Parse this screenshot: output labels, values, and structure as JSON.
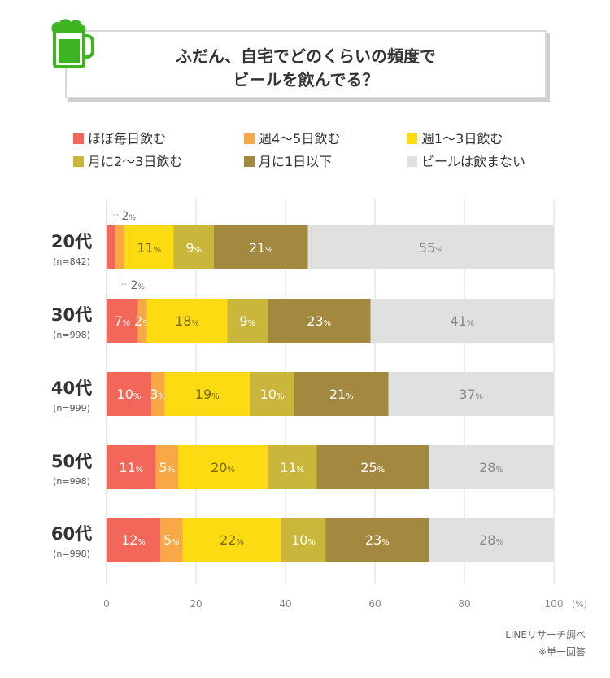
{
  "title": {
    "line1": "ふだん、自宅でどのくらいの頻度で",
    "line2": "ビールを飲んでる？"
  },
  "icon": "beer-mug-icon",
  "source": "LINEリサーチ調べ",
  "note": "※単一回答",
  "colors": [
    "#f2675a",
    "#f9a848",
    "#fcdb12",
    "#cab63a",
    "#a3893f",
    "#e0e0e0"
  ],
  "chart_data": {
    "type": "bar",
    "orientation": "horizontal",
    "stacked": true,
    "title": "ふだん、自宅でどのくらいの頻度でビールを飲んでる？",
    "categories": [
      "20代",
      "30代",
      "40代",
      "50代",
      "60代"
    ],
    "sample_sizes": [
      "(n=842)",
      "(n=998)",
      "(n=999)",
      "(n=998)",
      "(n=998)"
    ],
    "series": [
      {
        "name": "ほぼ毎日飲む",
        "values": [
          2,
          7,
          10,
          11,
          12
        ]
      },
      {
        "name": "週4～5日飲む",
        "values": [
          2,
          2,
          3,
          5,
          5
        ]
      },
      {
        "name": "週1～3日飲む",
        "values": [
          11,
          18,
          19,
          20,
          22
        ]
      },
      {
        "name": "月に2～3日飲む",
        "values": [
          9,
          9,
          10,
          11,
          10
        ]
      },
      {
        "name": "月に1日以下",
        "values": [
          21,
          23,
          21,
          25,
          23
        ]
      },
      {
        "name": "ビールは飲まない",
        "values": [
          55,
          41,
          37,
          28,
          28
        ]
      }
    ],
    "xlim": [
      0,
      100
    ],
    "xticks": [
      "0",
      "20",
      "40",
      "60",
      "80",
      "100"
    ],
    "x_unit": "(%)",
    "value_suffix": "%",
    "callouts": [
      {
        "label": "2",
        "suffix": "%",
        "category": "20代",
        "series": "ほぼ毎日飲む",
        "side": "above"
      },
      {
        "label": "2",
        "suffix": "%",
        "category": "20代",
        "series": "週4～5日飲む",
        "side": "below"
      }
    ],
    "grid": true
  }
}
